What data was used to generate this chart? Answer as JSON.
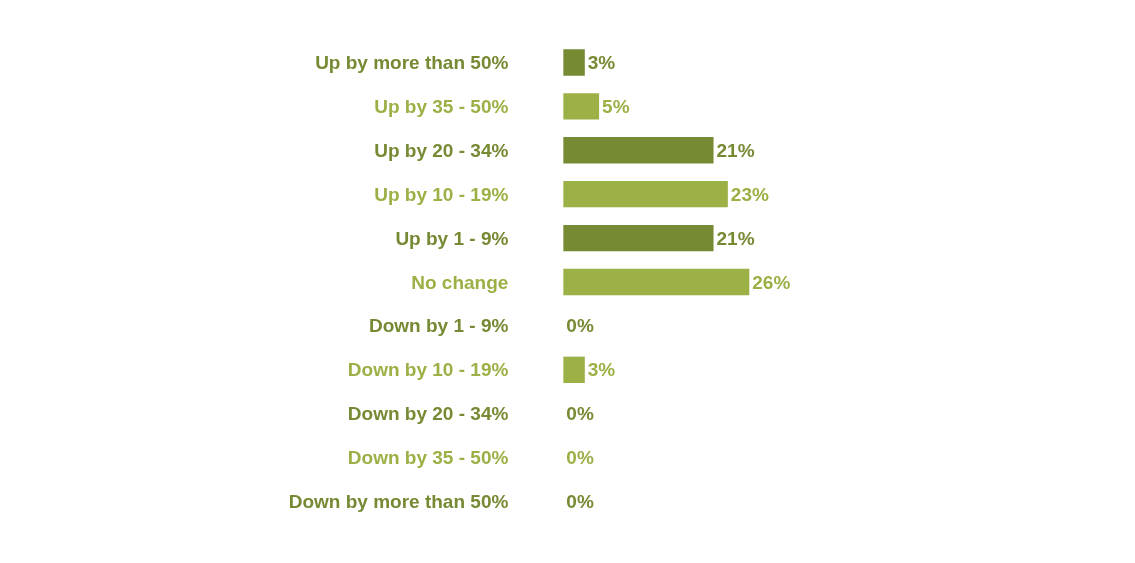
{
  "chart_data": {
    "type": "bar",
    "orientation": "horizontal",
    "categories": [
      "Up by more than 50%",
      "Up by 35 - 50%",
      "Up by 20 - 34%",
      "Up by 10 - 19%",
      "Up by 1 - 9%",
      "No change",
      "Down by 1 - 9%",
      "Down by 10 - 19%",
      "Down by 20 - 34%",
      "Down by 35 - 50%",
      "Down by more than 50%"
    ],
    "values": [
      3,
      5,
      21,
      23,
      21,
      26,
      0,
      3,
      0,
      0,
      0
    ],
    "colors": [
      "#758a33",
      "#9bb045",
      "#758a33",
      "#9bb045",
      "#758a33",
      "#9bb045",
      "#758a33",
      "#9bb045",
      "#758a33",
      "#9bb045",
      "#758a33"
    ],
    "value_labels": [
      "3%",
      "5%",
      "21%",
      "23%",
      "21%",
      "26%",
      "0%",
      "3%",
      "0%",
      "0%",
      "0%"
    ]
  }
}
